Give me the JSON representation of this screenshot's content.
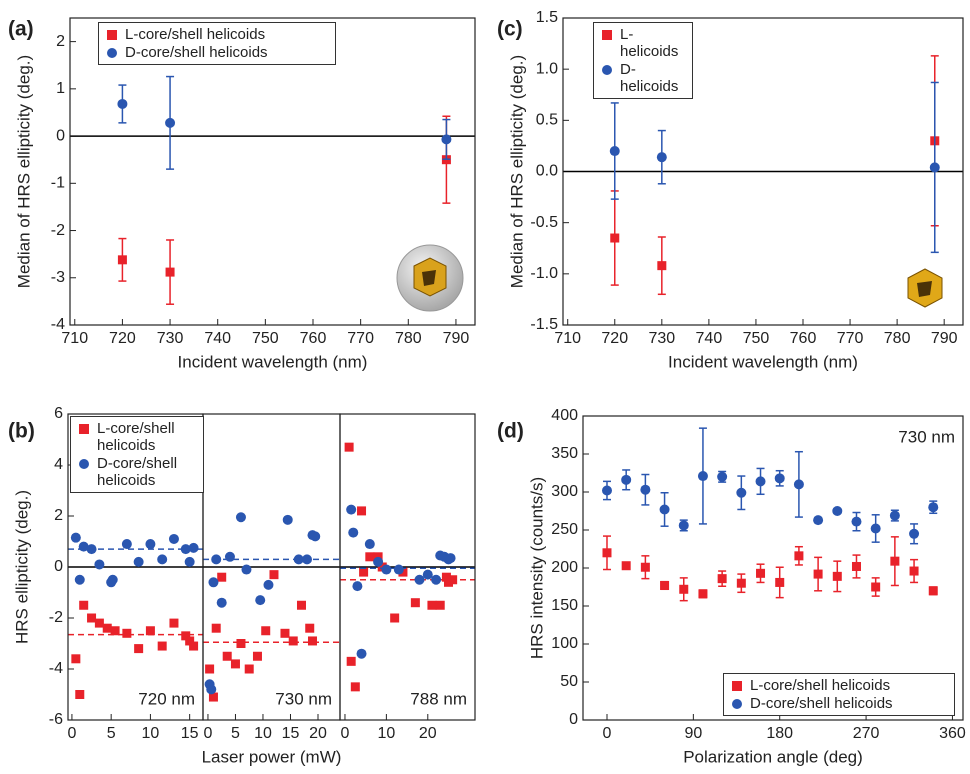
{
  "chart_data": [
    {
      "type": "scatter",
      "panel_label": "(a)",
      "xlabel": "Incident wavelength (nm)",
      "ylabel": "Median of HRS ellipticity (deg.)",
      "x": [
        720,
        730,
        788
      ],
      "xlim": [
        709,
        794
      ],
      "xticks": [
        710,
        720,
        730,
        740,
        750,
        760,
        770,
        780,
        790
      ],
      "ylim": [
        -4,
        2.5
      ],
      "yticks": [
        -4,
        -3,
        -2,
        -1,
        0,
        1,
        2
      ],
      "zero_line": true,
      "legend": "upper left",
      "series": [
        {
          "name": "L-core/shell helicoids",
          "color": "#e8222a",
          "marker": "square",
          "values": [
            -2.62,
            -2.88,
            -0.5
          ],
          "errors": [
            0.45,
            0.68,
            0.92
          ]
        },
        {
          "name": "D-core/shell helicoids",
          "color": "#2a56b0",
          "marker": "circle",
          "values": [
            0.68,
            0.28,
            -0.07
          ],
          "errors": [
            0.4,
            0.98,
            0.42
          ]
        }
      ]
    },
    {
      "type": "scatter",
      "panel_label": "(c)",
      "xlabel": "Incident wavelength (nm)",
      "ylabel": "Median of HRS ellipticity (deg.)",
      "x": [
        720,
        730,
        788
      ],
      "xlim": [
        709,
        794
      ],
      "xticks": [
        710,
        720,
        730,
        740,
        750,
        760,
        770,
        780,
        790
      ],
      "ylim": [
        -1.5,
        1.5
      ],
      "yticks": [
        {
          "value": -1.5,
          "label": "-1.5"
        },
        {
          "value": -1,
          "label": "-1.0"
        },
        -0.5,
        {
          "value": 0,
          "label": "0.0"
        },
        0.5,
        {
          "value": 1,
          "label": "1.0"
        },
        1.5
      ],
      "zero_line": true,
      "legend": "upper left",
      "series": [
        {
          "name": "L-helicoids",
          "color": "#e8222a",
          "marker": "square",
          "values": [
            -0.65,
            -0.92,
            0.3
          ],
          "errors": [
            0.46,
            0.28,
            0.83
          ]
        },
        {
          "name": "D-helicoids",
          "color": "#2a56b0",
          "marker": "circle",
          "values": [
            0.2,
            0.14,
            0.04
          ],
          "errors": [
            0.47,
            0.26,
            0.83
          ]
        }
      ]
    },
    {
      "type": "scatter",
      "panel_label": "(b)",
      "ylabel": "HRS ellipticity (deg.)",
      "annotation": "720 nm",
      "xlim": [
        -0.5,
        16.7
      ],
      "xticks": [
        0,
        5,
        10,
        15
      ],
      "ylim": [
        -6,
        6
      ],
      "yticks": [
        -6,
        -4,
        -2,
        0,
        2,
        4,
        6
      ],
      "zero_line": true,
      "legend": "upper left",
      "series": [
        {
          "name": "L-core/shell helicoids",
          "color": "#e8222a",
          "marker": "square",
          "mean": -2.65,
          "x": [
            0.5,
            1,
            1.5,
            2.5,
            3.5,
            4.5,
            5.5,
            7,
            8.5,
            10,
            11.5,
            13,
            14.5,
            15,
            15.5
          ],
          "values": [
            -3.6,
            -5,
            -1.5,
            -2,
            -2.2,
            -2.4,
            -2.5,
            -2.6,
            -3.2,
            -2.5,
            -3.1,
            -2.2,
            -2.7,
            -2.9,
            -3.1
          ]
        },
        {
          "name": "D-core/shell helicoids",
          "color": "#2a56b0",
          "marker": "circle",
          "mean": 0.7,
          "x": [
            0.5,
            1,
            1.5,
            2.5,
            3.5,
            5,
            5.2,
            7,
            8.5,
            10,
            11.5,
            13,
            14.5,
            15,
            15.5
          ],
          "values": [
            1.15,
            -0.5,
            0.8,
            0.7,
            0.1,
            -0.6,
            -0.5,
            0.9,
            0.2,
            0.9,
            0.3,
            1.1,
            0.7,
            0.2,
            0.75
          ]
        }
      ]
    },
    {
      "type": "scatter",
      "xlabel": "Laser power (mW)",
      "annotation": "730 nm",
      "xlim": [
        -0.9,
        24
      ],
      "xticks": [
        0,
        5,
        10,
        15,
        20
      ],
      "ylim": [
        -6,
        6
      ],
      "zero_line": true,
      "series": [
        {
          "color": "#e8222a",
          "marker": "square",
          "mean": -2.95,
          "x": [
            0.3,
            1,
            1.5,
            2.5,
            3.5,
            5,
            6,
            7.5,
            9,
            10.5,
            12,
            14,
            15.5,
            17,
            18.5,
            19
          ],
          "values": [
            -4,
            -5.1,
            -2.4,
            -0.4,
            -3.5,
            -3.8,
            -3,
            -4,
            -3.5,
            -2.5,
            -0.3,
            -2.6,
            -2.9,
            -1.5,
            -2.4,
            -2.9
          ]
        },
        {
          "color": "#2a56b0",
          "marker": "circle",
          "mean": 0.3,
          "x": [
            0.3,
            0.6,
            1,
            1.5,
            2.5,
            4,
            6,
            7,
            9.5,
            11,
            14.5,
            16.5,
            18,
            19,
            19.5
          ],
          "values": [
            -4.6,
            -4.8,
            -0.6,
            0.3,
            -1.4,
            0.4,
            1.95,
            -0.1,
            -1.3,
            -0.7,
            1.85,
            0.3,
            0.3,
            1.25,
            1.2
          ]
        }
      ]
    },
    {
      "type": "scatter",
      "annotation": "788 nm",
      "xlim": [
        -1.2,
        31.4
      ],
      "xticks": [
        0,
        10,
        20
      ],
      "ylim": [
        -6,
        6
      ],
      "zero_line": true,
      "series": [
        {
          "color": "#e8222a",
          "marker": "square",
          "mean": -0.5,
          "x": [
            1,
            1.5,
            2.5,
            4,
            4.5,
            6,
            8,
            9,
            12,
            14,
            17,
            21,
            23,
            24.5,
            25,
            26
          ],
          "values": [
            4.7,
            -3.7,
            -4.7,
            2.2,
            -0.2,
            0.4,
            0.4,
            0,
            -2,
            -0.2,
            -1.4,
            -1.5,
            -1.5,
            -0.4,
            -0.6,
            -0.5
          ]
        },
        {
          "color": "#2a56b0",
          "marker": "circle",
          "mean": -0.05,
          "x": [
            1.5,
            2,
            3,
            4,
            6,
            8,
            10,
            13,
            18,
            20,
            22,
            23,
            24,
            25,
            25.5
          ],
          "values": [
            2.25,
            1.35,
            -0.75,
            -3.4,
            0.9,
            0.2,
            -0.1,
            -0.1,
            -0.5,
            -0.3,
            -0.5,
            0.45,
            0.4,
            0.3,
            0.35
          ]
        }
      ]
    },
    {
      "type": "scatter",
      "panel_label": "(d)",
      "xlabel": "Polarization angle (deg)",
      "ylabel": "HRS intensity (counts/s)",
      "annotation": "730 nm",
      "x": [
        0,
        20,
        40,
        60,
        80,
        100,
        120,
        140,
        160,
        180,
        200,
        220,
        240,
        260,
        280,
        300,
        320,
        340
      ],
      "xlim": [
        -25,
        371
      ],
      "xticks": [
        0,
        90,
        180,
        270,
        360
      ],
      "ylim": [
        0,
        400
      ],
      "yticks": [
        0,
        50,
        100,
        150,
        200,
        250,
        300,
        350,
        400
      ],
      "legend": "lower right",
      "series": [
        {
          "name": "L-core/shell helicoids",
          "color": "#e8222a",
          "marker": "square",
          "values": [
            220,
            203,
            201,
            177,
            172,
            166,
            186,
            180,
            193,
            181,
            216,
            192,
            189,
            202,
            175,
            209,
            196,
            170
          ],
          "errors": [
            22,
            3,
            15,
            5,
            15,
            5,
            10,
            12,
            12,
            20,
            12,
            22,
            20,
            15,
            12,
            32,
            15,
            5
          ]
        },
        {
          "name": "D-core/shell helicoids",
          "color": "#2a56b0",
          "marker": "circle",
          "values": [
            302,
            316,
            303,
            277,
            256,
            321,
            320,
            299,
            314,
            318,
            310,
            263,
            275,
            261,
            252,
            269,
            245,
            280
          ],
          "errors": [
            12,
            13,
            20,
            22,
            7,
            63,
            7,
            22,
            17,
            10,
            43,
            3,
            3,
            12,
            18,
            7,
            13,
            8
          ]
        }
      ]
    }
  ]
}
